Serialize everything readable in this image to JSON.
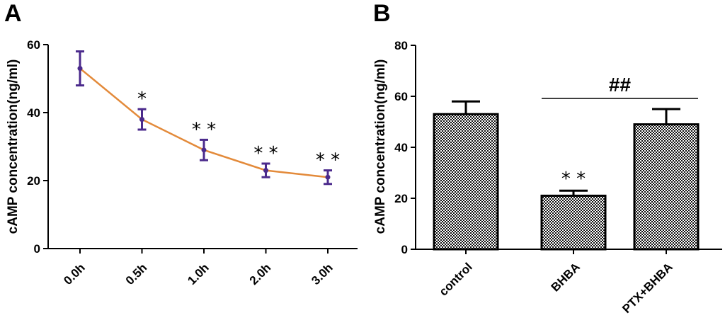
{
  "figure": {
    "panel_a_label": "A",
    "panel_b_label": "B"
  },
  "chart_data": [
    {
      "type": "line",
      "panel": "A",
      "title": "",
      "xlabel": "",
      "ylabel": "cAMP concentration(ng/ml)",
      "categories": [
        "0.0h",
        "0.5h",
        "1.0h",
        "2.0h",
        "3.0h"
      ],
      "series": [
        {
          "values": [
            53,
            38,
            29,
            23,
            21
          ],
          "errors": [
            5,
            3,
            3,
            2,
            2
          ]
        }
      ],
      "annotations": [
        "",
        "*",
        "* *",
        "* *",
        "* *"
      ],
      "ylim": [
        0,
        60
      ],
      "yticks": [
        0,
        20,
        40,
        60
      ],
      "grid": false,
      "line_color": "#e38a3a",
      "marker_color": "#4b2a8c"
    },
    {
      "type": "bar",
      "panel": "B",
      "title": "",
      "xlabel": "",
      "ylabel": "cAMP concentration(ng/ml)",
      "categories": [
        "control",
        "BHBA",
        "PTX+BHBA"
      ],
      "series": [
        {
          "values": [
            53,
            21,
            49
          ],
          "errors": [
            5,
            2,
            6
          ]
        }
      ],
      "annotations": [
        "",
        "* *",
        ""
      ],
      "bracket": {
        "from": "BHBA",
        "to": "PTX+BHBA",
        "label": "##"
      },
      "ylim": [
        0,
        80
      ],
      "yticks": [
        0,
        20,
        40,
        60,
        80
      ],
      "grid": false,
      "fill": "checkered"
    }
  ]
}
